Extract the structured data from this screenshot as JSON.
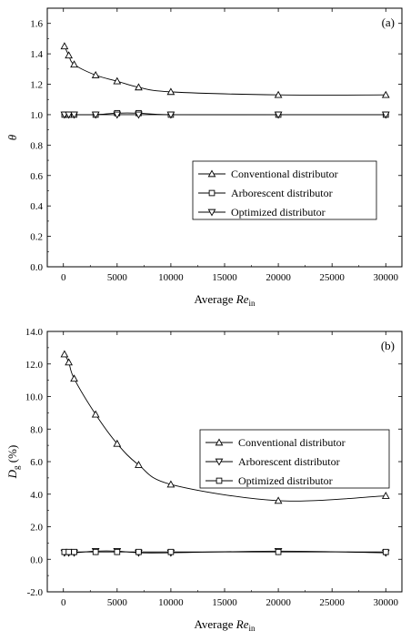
{
  "chart_data": [
    {
      "type": "line",
      "panel": "(a)",
      "xlabel_prefix": "Average ",
      "xlabel_italic": "Re",
      "xlabel_sub": "in",
      "ylabel": "θ",
      "xlim": [
        -1500,
        31500
      ],
      "ylim": [
        0.0,
        1.7
      ],
      "xticks": [
        0,
        5000,
        10000,
        15000,
        20000,
        25000,
        30000
      ],
      "yticks": [
        0.0,
        0.2,
        0.4,
        0.6,
        0.8,
        1.0,
        1.2,
        1.4,
        1.6
      ],
      "ytick_decimals": 1,
      "grid": false,
      "legend_position": "center-right",
      "series": [
        {
          "name": "Conventional distributor",
          "marker": "triangle-up",
          "x": [
            100,
            500,
            1000,
            3000,
            5000,
            7000,
            10000,
            20000,
            30000
          ],
          "y": [
            1.45,
            1.39,
            1.33,
            1.26,
            1.22,
            1.18,
            1.15,
            1.13,
            1.13
          ]
        },
        {
          "name": "Arborescent distributor",
          "marker": "square",
          "x": [
            100,
            500,
            1000,
            3000,
            5000,
            7000,
            10000,
            20000,
            30000
          ],
          "y": [
            1.0,
            1.0,
            1.0,
            1.0,
            1.01,
            1.01,
            1.0,
            1.0,
            1.0
          ]
        },
        {
          "name": "Optimized distributor",
          "marker": "triangle-down",
          "x": [
            100,
            500,
            1000,
            3000,
            5000,
            7000,
            10000,
            20000,
            30000
          ],
          "y": [
            1.0,
            1.0,
            1.0,
            1.0,
            1.0,
            1.0,
            1.0,
            1.0,
            1.0
          ]
        }
      ]
    },
    {
      "type": "line",
      "panel": "(b)",
      "xlabel_prefix": "Average ",
      "xlabel_italic": "Re",
      "xlabel_sub": "in",
      "ylabel_italic": "D",
      "ylabel_sub": "g",
      "ylabel_suffix": " (%)",
      "xlim": [
        -1500,
        31500
      ],
      "ylim": [
        -2.0,
        14.0
      ],
      "xticks": [
        0,
        5000,
        10000,
        15000,
        20000,
        25000,
        30000
      ],
      "yticks": [
        -2.0,
        0.0,
        2.0,
        4.0,
        6.0,
        8.0,
        10.0,
        12.0,
        14.0
      ],
      "ytick_decimals": 1,
      "grid": false,
      "legend_position": "center-right",
      "series": [
        {
          "name": "Conventional distributor",
          "marker": "triangle-up",
          "x": [
            100,
            500,
            1000,
            3000,
            5000,
            7000,
            10000,
            20000,
            30000
          ],
          "y": [
            12.6,
            12.1,
            11.1,
            8.9,
            7.1,
            5.8,
            4.6,
            3.6,
            3.9
          ]
        },
        {
          "name": "Arborescent distributor",
          "marker": "triangle-down",
          "x": [
            100,
            500,
            1000,
            3000,
            5000,
            7000,
            10000,
            20000,
            30000
          ],
          "y": [
            0.4,
            0.4,
            0.4,
            0.5,
            0.5,
            0.4,
            0.4,
            0.5,
            0.4
          ]
        },
        {
          "name": "Optimized distributor",
          "marker": "square",
          "x": [
            100,
            500,
            1000,
            3000,
            5000,
            7000,
            10000,
            20000,
            30000
          ],
          "y": [
            0.45,
            0.45,
            0.45,
            0.45,
            0.45,
            0.45,
            0.45,
            0.45,
            0.45
          ]
        }
      ]
    }
  ]
}
